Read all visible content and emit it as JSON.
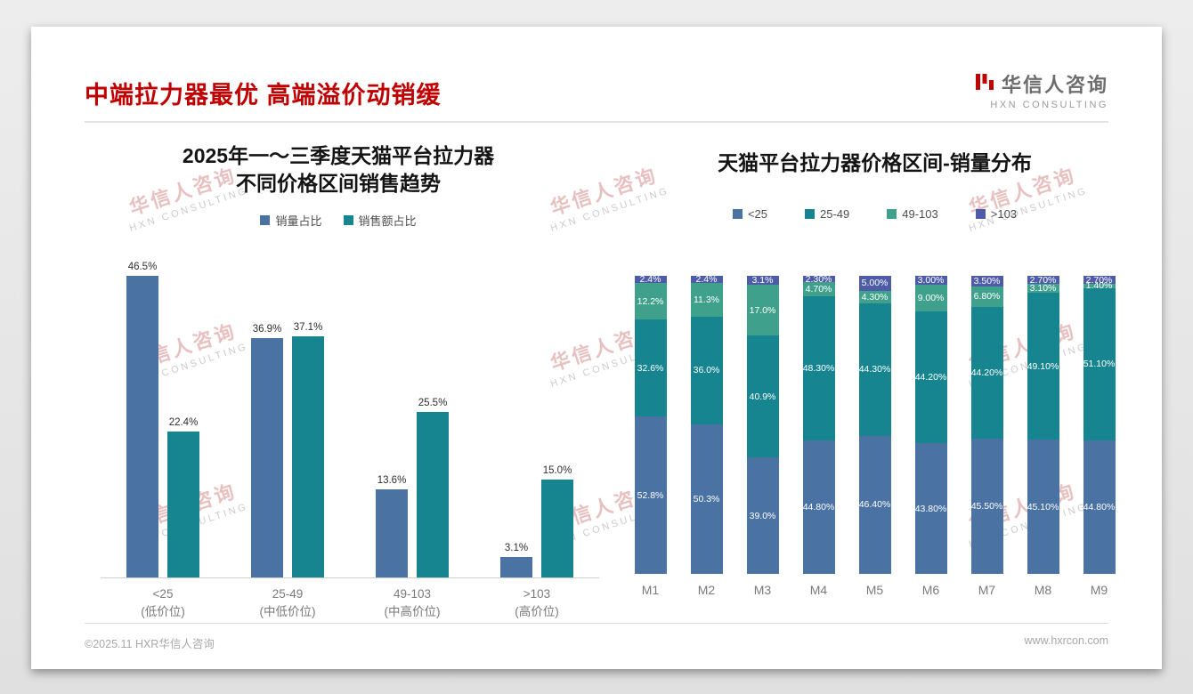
{
  "slide": {
    "title": "中端拉力器最优 高端溢价动销缓",
    "logo": {
      "cn": "华信人咨询",
      "en": "HXN CONSULTING"
    },
    "watermark": {
      "cn": "华信人咨询",
      "en": "HXN CONSULTING"
    },
    "footer": {
      "left": "©2025.11 HXR华信人咨询",
      "right": "www.hxrcon.com"
    }
  },
  "chart_data": [
    {
      "type": "bar",
      "variant": "grouped",
      "title_lines": [
        "2025年一～三季度天猫平台拉力器",
        "不同价格区间销售趋势"
      ],
      "categories": [
        "<25",
        "25-49",
        "49-103",
        ">103"
      ],
      "category_sub": [
        "(低价位)",
        "(中低价位)",
        "(中高价位)",
        "(高价位)"
      ],
      "series": [
        {
          "name": "销量占比",
          "color": "#4a72a2",
          "values": [
            46.5,
            36.9,
            13.6,
            3.1
          ],
          "labels": [
            "46.5%",
            "36.9%",
            "13.6%",
            "3.1%"
          ]
        },
        {
          "name": "销售额占比",
          "color": "#17858f",
          "values": [
            22.4,
            37.1,
            25.5,
            15.0
          ],
          "labels": [
            "22.4%",
            "37.1%",
            "25.5%",
            "15.0%"
          ]
        }
      ],
      "ylim": [
        0,
        50
      ],
      "grid": false,
      "legend_position": "top"
    },
    {
      "type": "bar",
      "variant": "stacked-100",
      "title": "天猫平台拉力器价格区间-销量分布",
      "categories": [
        "M1",
        "M2",
        "M3",
        "M4",
        "M5",
        "M6",
        "M7",
        "M8",
        "M9"
      ],
      "series": [
        {
          "name": "<25",
          "color": "#4a72a2",
          "values": [
            52.8,
            50.3,
            39.0,
            44.8,
            46.4,
            43.8,
            45.5,
            45.1,
            44.8
          ],
          "labels": [
            "52.8%",
            "50.3%",
            "39.0%",
            "44.80%",
            "46.40%",
            "43.80%",
            "45.50%",
            "45.10%",
            "44.80%"
          ]
        },
        {
          "name": "25-49",
          "color": "#17858f",
          "values": [
            32.6,
            36.0,
            40.9,
            48.3,
            44.3,
            44.2,
            44.2,
            49.1,
            51.1
          ],
          "labels": [
            "32.6%",
            "36.0%",
            "40.9%",
            "48.30%",
            "44.30%",
            "44.20%",
            "44.20%",
            "49.10%",
            "51.10%"
          ]
        },
        {
          "name": "49-103",
          "color": "#3fa18b",
          "values": [
            12.2,
            11.3,
            17.0,
            4.7,
            4.3,
            9.0,
            6.8,
            3.1,
            1.4
          ],
          "labels": [
            "12.2%",
            "11.3%",
            "17.0%",
            "4.70%",
            "4.30%",
            "9.00%",
            "6.80%",
            "3.10%",
            "1.40%"
          ]
        },
        {
          "name": ">103",
          "color": "#4e5ca7",
          "values": [
            2.4,
            2.4,
            3.1,
            2.3,
            5.0,
            3.0,
            3.5,
            2.7,
            2.7
          ],
          "labels": [
            "2.4%",
            "2.4%",
            "3.1%",
            "2.30%",
            "5.00%",
            "3.00%",
            "3.50%",
            "2.70%",
            "2.70%"
          ]
        }
      ],
      "ylim": [
        0,
        100
      ],
      "grid": false,
      "legend_position": "top"
    }
  ]
}
